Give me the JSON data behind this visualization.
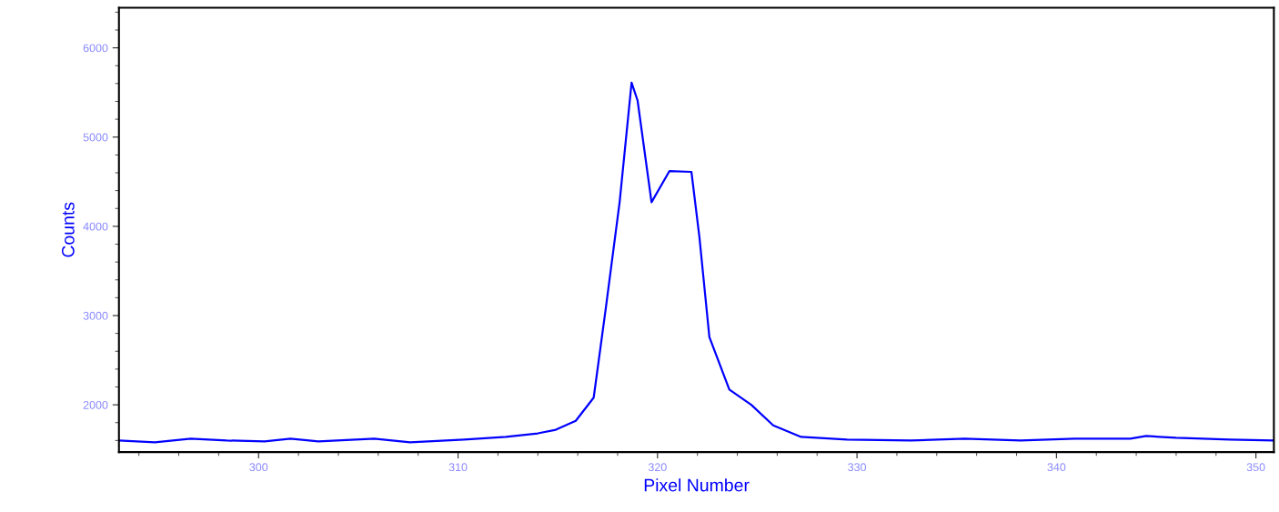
{
  "chart_data": {
    "type": "line",
    "xlabel": "Pixel Number",
    "ylabel": "Counts",
    "x": [
      293.0,
      294.8,
      296.6,
      298.4,
      300.3,
      301.6,
      303.0,
      305.8,
      307.6,
      310.3,
      312.4,
      314.0,
      314.9,
      315.9,
      316.8,
      317.4,
      318.1,
      318.7,
      319.0,
      319.7,
      320.6,
      321.7,
      322.1,
      322.6,
      323.6,
      324.7,
      325.8,
      327.2,
      329.5,
      332.7,
      335.4,
      338.2,
      340.9,
      343.7,
      344.5,
      346.0,
      348.7,
      350.9
    ],
    "series": [
      {
        "color": "#0000ff",
        "values": [
          1600,
          1580,
          1620,
          1600,
          1590,
          1620,
          1590,
          1620,
          1580,
          1610,
          1640,
          1680,
          1720,
          1820,
          2080,
          3070,
          4270,
          5610,
          5410,
          4270,
          4620,
          4610,
          3880,
          2760,
          2170,
          2000,
          1770,
          1640,
          1610,
          1600,
          1620,
          1600,
          1620,
          1620,
          1650,
          1630,
          1610,
          1600
        ]
      }
    ],
    "xlim": [
      293,
      350.9
    ],
    "ylim": [
      1470,
      6450
    ],
    "xticks": [
      300,
      310,
      320,
      330,
      340,
      350
    ],
    "yticks": [
      2000,
      3000,
      4000,
      5000,
      6000
    ],
    "grid": false,
    "legend": false,
    "marker": "none",
    "line_style": "solid"
  }
}
